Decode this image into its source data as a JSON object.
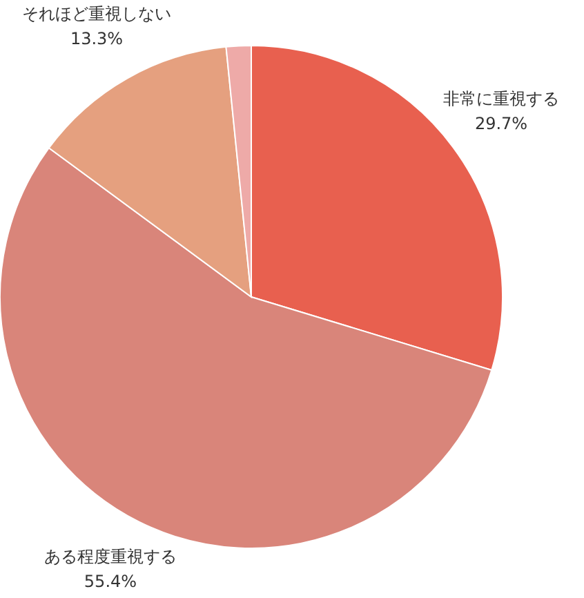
{
  "chart_data": {
    "type": "pie",
    "categories": [
      "非常に重視する",
      "ある程度重視する",
      "それほど重視しない",
      null
    ],
    "values": [
      29.7,
      55.4,
      13.3,
      1.6
    ],
    "colors": [
      "#e8604f",
      "#d9857a",
      "#e5a07f",
      "#eeaaa8"
    ],
    "value_labels": [
      "29.7%",
      "55.4%",
      "13.3%",
      null
    ],
    "legend": false
  }
}
